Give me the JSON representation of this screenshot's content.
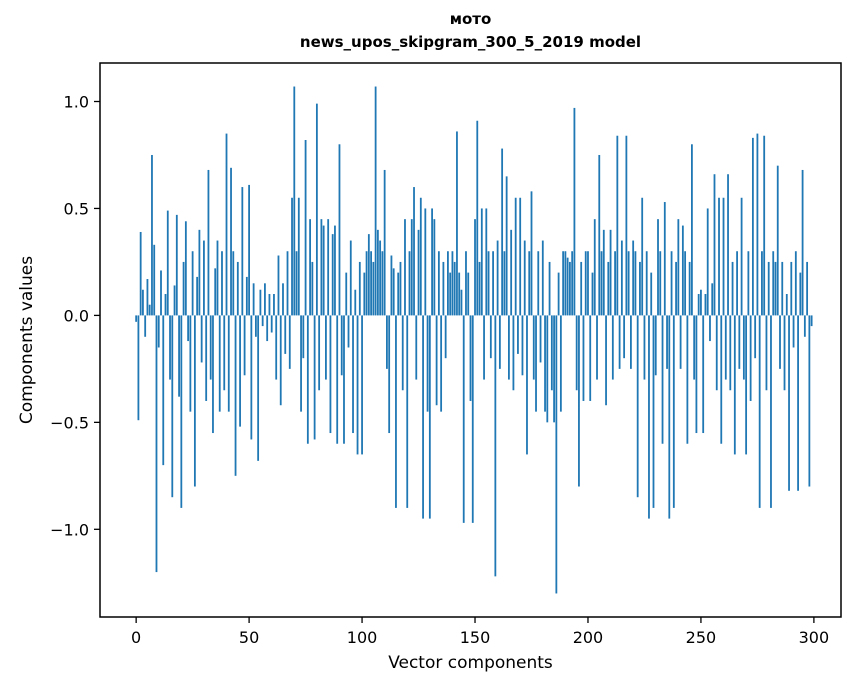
{
  "chart_data": {
    "type": "bar",
    "title": "мото",
    "subtitle": "news_upos_skipgram_300_5_2019 model",
    "xlabel": "Vector components",
    "ylabel": "Components values",
    "bar_color": "#1f77b4",
    "axis_color": "#000000",
    "background_color": "#ffffff",
    "legend": "off",
    "grid": "off",
    "xticks": [
      0,
      50,
      100,
      150,
      200,
      250,
      300
    ],
    "yticks": [
      -1.0,
      -0.5,
      0.0,
      0.5,
      1.0
    ],
    "xlim": [
      -16,
      312
    ],
    "ylim": [
      -1.41,
      1.18
    ],
    "values": [
      -0.03,
      -0.49,
      0.39,
      0.12,
      -0.1,
      0.17,
      0.05,
      0.75,
      0.33,
      -1.2,
      -0.15,
      0.21,
      -0.7,
      0.1,
      0.49,
      -0.3,
      -0.85,
      0.14,
      0.47,
      -0.38,
      -0.9,
      0.25,
      0.44,
      -0.12,
      -0.45,
      0.3,
      -0.8,
      0.18,
      0.4,
      -0.22,
      0.35,
      -0.4,
      0.68,
      -0.3,
      -0.55,
      0.22,
      0.35,
      -0.45,
      0.3,
      -0.35,
      0.85,
      -0.45,
      0.69,
      0.3,
      -0.75,
      0.25,
      -0.52,
      0.6,
      -0.28,
      0.18,
      0.61,
      -0.58,
      0.15,
      -0.1,
      -0.68,
      0.12,
      -0.05,
      0.15,
      -0.12,
      0.1,
      -0.08,
      0.1,
      -0.3,
      0.28,
      -0.42,
      0.15,
      -0.18,
      0.3,
      -0.25,
      0.55,
      1.07,
      0.3,
      0.55,
      -0.45,
      -0.2,
      0.82,
      -0.6,
      0.45,
      0.25,
      -0.58,
      0.99,
      -0.35,
      0.45,
      0.42,
      -0.3,
      0.45,
      -0.55,
      0.38,
      0.42,
      -0.6,
      0.8,
      -0.28,
      -0.6,
      0.2,
      -0.15,
      0.35,
      -0.55,
      0.12,
      -0.65,
      0.25,
      -0.65,
      0.2,
      0.3,
      0.38,
      0.3,
      0.25,
      1.07,
      0.4,
      0.35,
      0.3,
      0.68,
      -0.25,
      -0.55,
      0.28,
      0.22,
      -0.9,
      0.2,
      0.25,
      -0.35,
      0.45,
      -0.9,
      0.3,
      0.45,
      0.6,
      -0.3,
      0.4,
      0.55,
      -0.95,
      0.5,
      -0.45,
      -0.95,
      0.5,
      0.45,
      -0.42,
      0.3,
      -0.45,
      0.25,
      -0.2,
      0.3,
      0.2,
      0.3,
      0.25,
      0.86,
      0.2,
      0.12,
      -0.97,
      0.3,
      0.2,
      -0.4,
      -0.97,
      0.45,
      0.91,
      0.25,
      0.5,
      -0.3,
      0.5,
      0.3,
      -0.2,
      0.3,
      -1.22,
      0.35,
      -0.25,
      0.78,
      0.3,
      0.65,
      -0.3,
      0.4,
      -0.35,
      0.55,
      -0.18,
      0.55,
      -0.28,
      0.35,
      -0.65,
      0.3,
      0.58,
      -0.3,
      -0.45,
      0.3,
      -0.22,
      0.35,
      -0.45,
      -0.5,
      0.25,
      -0.35,
      -0.5,
      -1.3,
      0.2,
      -0.45,
      0.3,
      0.3,
      0.27,
      0.25,
      0.3,
      0.97,
      -0.35,
      -0.8,
      0.25,
      -0.4,
      0.3,
      0.3,
      -0.4,
      0.2,
      0.45,
      -0.3,
      0.75,
      0.3,
      0.4,
      -0.42,
      0.25,
      0.4,
      -0.3,
      0.3,
      0.84,
      -0.25,
      0.35,
      -0.2,
      0.84,
      0.3,
      -0.25,
      0.35,
      0.3,
      -0.85,
      0.25,
      0.55,
      -0.3,
      0.3,
      -0.95,
      0.2,
      -0.9,
      -0.28,
      0.45,
      0.3,
      -0.6,
      0.53,
      -0.25,
      -0.95,
      0.3,
      -0.9,
      0.25,
      0.45,
      -0.25,
      0.42,
      0.3,
      -0.6,
      0.25,
      0.8,
      -0.3,
      -0.55,
      0.1,
      0.12,
      -0.55,
      0.1,
      0.5,
      -0.12,
      0.15,
      0.66,
      -0.35,
      0.55,
      -0.6,
      0.55,
      -0.3,
      0.66,
      -0.35,
      0.25,
      -0.65,
      0.3,
      -0.25,
      0.55,
      -0.3,
      -0.65,
      0.3,
      -0.4,
      0.83,
      -0.2,
      0.85,
      -0.9,
      0.3,
      0.84,
      -0.35,
      0.25,
      -0.9,
      0.3,
      0.25,
      0.7,
      -0.25,
      0.25,
      -0.35,
      0.1,
      -0.82,
      0.25,
      -0.15,
      0.3,
      -0.82,
      0.2,
      0.68,
      -0.1,
      0.25,
      -0.8,
      -0.05
    ]
  }
}
